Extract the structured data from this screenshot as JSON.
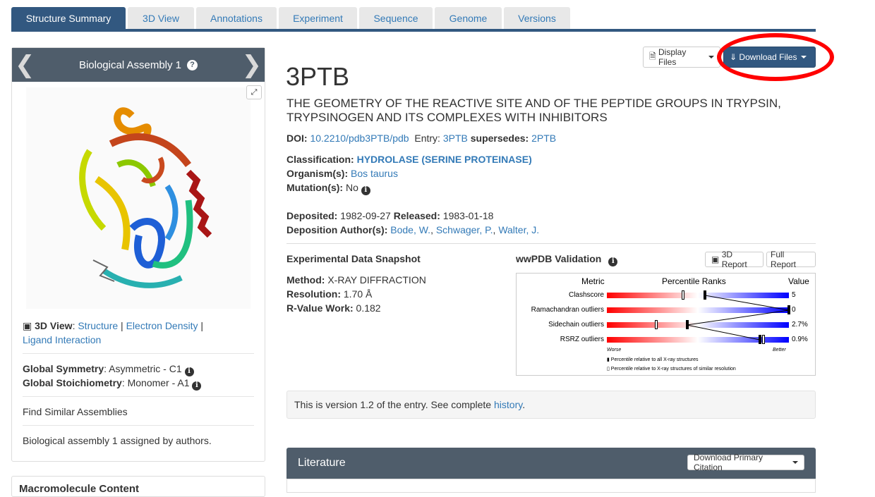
{
  "tabs": [
    "Structure Summary",
    "3D View",
    "Annotations",
    "Experiment",
    "Sequence",
    "Genome",
    "Versions"
  ],
  "assembly": {
    "title": "Biological Assembly 1",
    "view3d_label": "3D View",
    "links": [
      "Structure",
      "Electron Density",
      "Ligand Interaction"
    ],
    "global_symmetry_label": "Global Symmetry",
    "global_symmetry_value": ": Asymmetric - C1",
    "global_stoich_label": "Global Stoichiometry",
    "global_stoich_value": ": Monomer - A1",
    "find_similar": "Find Similar Assemblies",
    "assigned_note": "Biological assembly 1 assigned by authors.",
    "macromolecule_heading": "Macromolecule Content"
  },
  "buttons": {
    "display_files": "Display Files",
    "download_files": "Download Files"
  },
  "entry": {
    "id": "3PTB",
    "title": "THE GEOMETRY OF THE REACTIVE SITE AND OF THE PEPTIDE GROUPS IN TRYPSIN, TRYPSINOGEN AND ITS COMPLEXES WITH INHIBITORS",
    "doi_label": "DOI:",
    "doi": "10.2210/pdb3PTB/pdb",
    "entry_label": "Entry:",
    "entry_link": "3PTB",
    "supersedes_label": "supersedes:",
    "supersedes": "2PTB",
    "classification_label": "Classification:",
    "classification": "HYDROLASE (SERINE PROTEINASE)",
    "organism_label": "Organism(s):",
    "organism": "Bos taurus",
    "mutation_label": "Mutation(s):",
    "mutation": "No",
    "deposited_label": "Deposited:",
    "deposited": "1982-09-27",
    "released_label": "Released:",
    "released": "1983-01-18",
    "authors_label": "Deposition Author(s):",
    "authors": [
      "Bode, W.",
      "Schwager, P.",
      "Walter, J."
    ]
  },
  "experimental": {
    "heading": "Experimental Data Snapshot",
    "method_label": "Method:",
    "method": "X-RAY DIFFRACTION",
    "resolution_label": "Resolution:",
    "resolution": "1.70 Å",
    "rvalue_label": "R-Value Work:",
    "rvalue": "0.182"
  },
  "validation": {
    "heading": "wwPDB Validation",
    "btn_3d": "3D Report",
    "btn_full": "Full Report",
    "col_metric": "Metric",
    "col_percentile": "Percentile Ranks",
    "col_value": "Value",
    "metrics": [
      {
        "name": "Clashscore",
        "value": "5",
        "all_pct": 0.54,
        "sim_pct": 0.42
      },
      {
        "name": "Ramachandran outliers",
        "value": "0",
        "all_pct": 1.0,
        "sim_pct": 1.0
      },
      {
        "name": "Sidechain outliers",
        "value": "2.7%",
        "all_pct": 0.44,
        "sim_pct": 0.27
      },
      {
        "name": "RSRZ outliers",
        "value": "0.9%",
        "all_pct": 0.84,
        "sim_pct": 0.86
      }
    ],
    "worse": "Worse",
    "better": "Better",
    "legend_all": "Percentile relative to all X-ray structures",
    "legend_sim": "Percentile relative to X-ray structures of similar resolution"
  },
  "version": {
    "text": "This is version 1.2 of the entry. See complete ",
    "link": "history",
    "end": "."
  },
  "literature": {
    "heading": "Literature",
    "button": "Download Primary Citation"
  }
}
